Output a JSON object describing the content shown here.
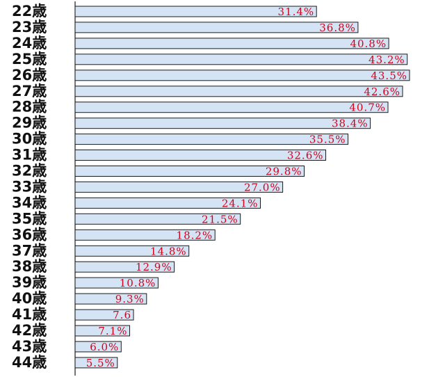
{
  "chart_data": {
    "type": "bar",
    "orientation": "horizontal",
    "categories": [
      "22歳",
      "23歳",
      "24歳",
      "25歳",
      "26歳",
      "27歳",
      "28歳",
      "29歳",
      "30歳",
      "31歳",
      "32歳",
      "33歳",
      "34歳",
      "35歳",
      "36歳",
      "37歳",
      "38歳",
      "39歳",
      "40歳",
      "41歳",
      "42歳",
      "43歳",
      "44歳"
    ],
    "values": [
      31.4,
      36.8,
      40.8,
      43.2,
      43.5,
      42.6,
      40.7,
      38.4,
      35.5,
      32.6,
      29.8,
      27.0,
      24.1,
      21.5,
      18.2,
      14.8,
      12.9,
      10.8,
      9.3,
      7.6,
      7.1,
      6.0,
      5.5
    ],
    "data_labels": [
      "31.4%",
      "36.8%",
      "40.8%",
      "43.2%",
      "43.5%",
      "42.6%",
      "40.7%",
      "38.4%",
      "35.5%",
      "32.6%",
      "29.8%",
      "27.0%",
      "24.1%",
      "21.5%",
      "18.2%",
      "14.8%",
      "12.9%",
      "10.8%",
      "9.3%",
      "7.6",
      "7.1%",
      "6.0%",
      "5.5%"
    ],
    "title": "",
    "xlabel": "",
    "ylabel": "",
    "xlim": [
      0,
      43.5
    ],
    "grid": false,
    "legend": "none",
    "bar_color": "#d5e4f4",
    "bar_edge_color": "#1a1a1a",
    "label_color": "#d0021b"
  }
}
